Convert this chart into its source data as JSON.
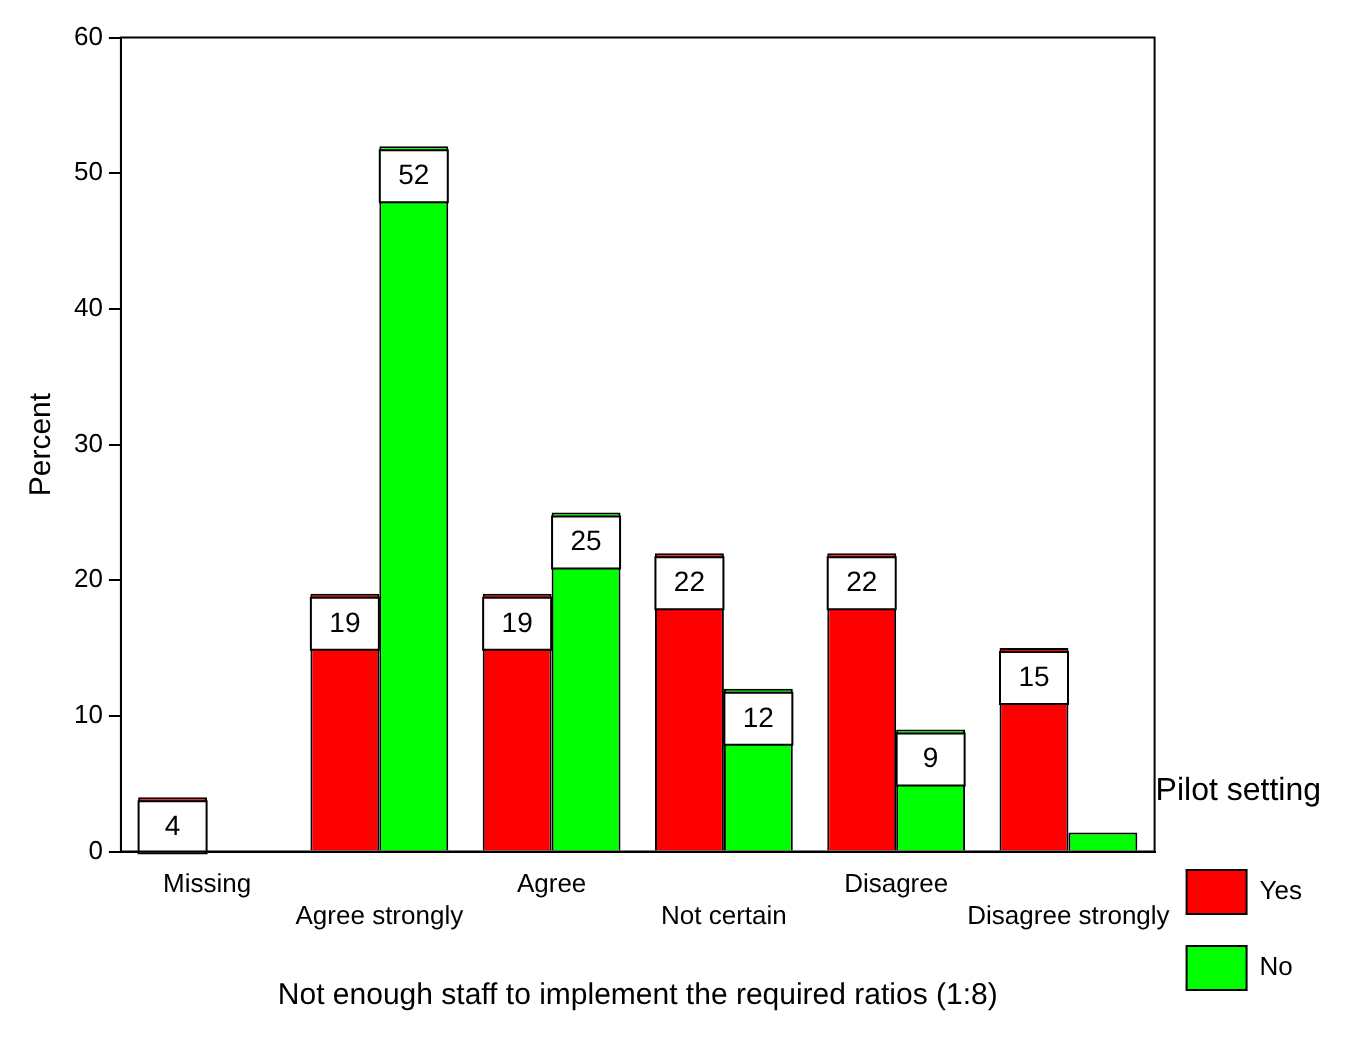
{
  "chart_data": {
    "type": "bar",
    "xlabel": "Not enough staff to implement the required ratios (1:8)",
    "ylabel": "Percent",
    "legend_title": "Pilot setting",
    "categories": [
      "Missing",
      "Agree strongly",
      "Agree",
      "Not certain",
      "Disagree",
      "Disagree strongly"
    ],
    "series": [
      {
        "name": "Yes",
        "color": "#ff0000",
        "values": [
          4,
          19,
          19,
          22,
          22,
          15
        ],
        "value_labels": [
          "4",
          "19",
          "19",
          "22",
          "22",
          "15"
        ]
      },
      {
        "name": "No",
        "color": "#00ff00",
        "values": [
          0,
          52,
          25,
          12,
          9,
          1.4
        ],
        "value_labels": [
          null,
          "52",
          "25",
          "12",
          "9",
          null
        ]
      }
    ],
    "ylim": [
      0,
      60
    ],
    "yticks": [
      0,
      10,
      20,
      30,
      40,
      50,
      60
    ],
    "grid": false,
    "legend": "right"
  }
}
